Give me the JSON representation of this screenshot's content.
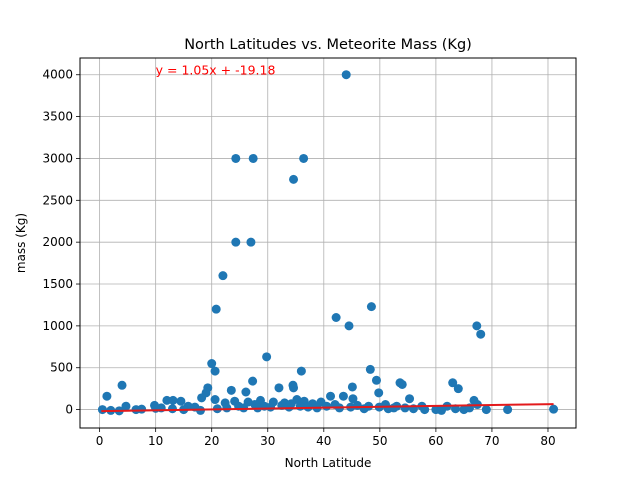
{
  "chart_data": {
    "type": "scatter",
    "title": "North Latitudes vs. Meteorite Mass (Kg)",
    "xlabel": "North Latitude",
    "ylabel": "mass (Kg)",
    "xlim": [
      -3.5,
      85
    ],
    "ylim": [
      -220,
      4200
    ],
    "xticks": [
      0,
      10,
      20,
      30,
      40,
      50,
      60,
      70,
      80
    ],
    "yticks": [
      0,
      500,
      1000,
      1500,
      2000,
      2500,
      3000,
      3500,
      4000
    ],
    "grid": true,
    "colors": {
      "points": "#1f77b4",
      "regression": "#e31a1c",
      "annotation": "#ff0000",
      "grid": "#b0b0b0"
    },
    "regression": {
      "slope": 1.05,
      "intercept": -19.18,
      "x_range": [
        0.3,
        81
      ]
    },
    "annotation": {
      "text": "y = 1.05x + -19.18",
      "x": 10,
      "y": 4000
    },
    "points": [
      {
        "x": 44,
        "y": 4000
      },
      {
        "x": 24.3,
        "y": 3000
      },
      {
        "x": 27.4,
        "y": 3000
      },
      {
        "x": 36.4,
        "y": 3000
      },
      {
        "x": 34.6,
        "y": 2750
      },
      {
        "x": 24.3,
        "y": 2000
      },
      {
        "x": 27,
        "y": 2000
      },
      {
        "x": 22,
        "y": 1600
      },
      {
        "x": 20.8,
        "y": 1200
      },
      {
        "x": 48.5,
        "y": 1230
      },
      {
        "x": 42.2,
        "y": 1100
      },
      {
        "x": 44.5,
        "y": 1000
      },
      {
        "x": 67.3,
        "y": 1000
      },
      {
        "x": 68,
        "y": 900
      },
      {
        "x": 29.8,
        "y": 630
      },
      {
        "x": 20,
        "y": 550
      },
      {
        "x": 48.3,
        "y": 480
      },
      {
        "x": 20.6,
        "y": 460
      },
      {
        "x": 36,
        "y": 460
      },
      {
        "x": 49.4,
        "y": 350
      },
      {
        "x": 27.3,
        "y": 340
      },
      {
        "x": 53.6,
        "y": 320
      },
      {
        "x": 54,
        "y": 300
      },
      {
        "x": 63,
        "y": 320
      },
      {
        "x": 64,
        "y": 250
      },
      {
        "x": 34.5,
        "y": 290
      },
      {
        "x": 34.6,
        "y": 260
      },
      {
        "x": 45.1,
        "y": 270
      },
      {
        "x": 4,
        "y": 290
      },
      {
        "x": 19.3,
        "y": 260
      },
      {
        "x": 32,
        "y": 260
      },
      {
        "x": 23.5,
        "y": 230
      },
      {
        "x": 26.1,
        "y": 210
      },
      {
        "x": 49.8,
        "y": 200
      },
      {
        "x": 1.3,
        "y": 160
      },
      {
        "x": 19,
        "y": 200
      },
      {
        "x": 43.5,
        "y": 160
      },
      {
        "x": 41.2,
        "y": 160
      },
      {
        "x": 18.2,
        "y": 140
      },
      {
        "x": 55.3,
        "y": 130
      },
      {
        "x": 45.2,
        "y": 130
      },
      {
        "x": 20.6,
        "y": 120
      },
      {
        "x": 28.7,
        "y": 110
      },
      {
        "x": 12,
        "y": 110
      },
      {
        "x": 13.1,
        "y": 110
      },
      {
        "x": 14.5,
        "y": 100
      },
      {
        "x": 24.1,
        "y": 100
      },
      {
        "x": 35.2,
        "y": 120
      },
      {
        "x": 36.5,
        "y": 100
      },
      {
        "x": 39.5,
        "y": 90
      },
      {
        "x": 26.5,
        "y": 90
      },
      {
        "x": 31,
        "y": 90
      },
      {
        "x": 22.4,
        "y": 80
      },
      {
        "x": 33,
        "y": 80
      },
      {
        "x": 38,
        "y": 70
      },
      {
        "x": 42,
        "y": 60
      },
      {
        "x": 46,
        "y": 50
      },
      {
        "x": 51,
        "y": 60
      },
      {
        "x": 53,
        "y": 40
      },
      {
        "x": 57.5,
        "y": 40
      },
      {
        "x": 66.8,
        "y": 110
      },
      {
        "x": 67.4,
        "y": 60
      },
      {
        "x": 62,
        "y": 40
      },
      {
        "x": 9.8,
        "y": 50
      },
      {
        "x": 4.7,
        "y": 40
      },
      {
        "x": 15.8,
        "y": 40
      },
      {
        "x": 17,
        "y": 30
      },
      {
        "x": 11,
        "y": 20
      },
      {
        "x": 0.5,
        "y": 0
      },
      {
        "x": 2,
        "y": -10
      },
      {
        "x": 3.5,
        "y": -15
      },
      {
        "x": 6.5,
        "y": 0
      },
      {
        "x": 7.5,
        "y": 5
      },
      {
        "x": 10,
        "y": 15
      },
      {
        "x": 13,
        "y": 10
      },
      {
        "x": 15,
        "y": 0
      },
      {
        "x": 18,
        "y": -10
      },
      {
        "x": 21,
        "y": 10
      },
      {
        "x": 22.7,
        "y": 20
      },
      {
        "x": 24.8,
        "y": 40
      },
      {
        "x": 25.7,
        "y": 20
      },
      {
        "x": 27.7,
        "y": 60
      },
      {
        "x": 28.2,
        "y": 20
      },
      {
        "x": 29.4,
        "y": 40
      },
      {
        "x": 30.5,
        "y": 30
      },
      {
        "x": 32.5,
        "y": 50
      },
      {
        "x": 33.8,
        "y": 30
      },
      {
        "x": 34.2,
        "y": 70
      },
      {
        "x": 35.8,
        "y": 40
      },
      {
        "x": 37.2,
        "y": 30
      },
      {
        "x": 38.8,
        "y": 20
      },
      {
        "x": 40.5,
        "y": 40
      },
      {
        "x": 42.8,
        "y": 20
      },
      {
        "x": 44.8,
        "y": 30
      },
      {
        "x": 47.2,
        "y": 10
      },
      {
        "x": 48,
        "y": 40
      },
      {
        "x": 49.9,
        "y": 30
      },
      {
        "x": 51.5,
        "y": 10
      },
      {
        "x": 52.5,
        "y": 20
      },
      {
        "x": 54.5,
        "y": 20
      },
      {
        "x": 56,
        "y": 10
      },
      {
        "x": 58,
        "y": 0
      },
      {
        "x": 60,
        "y": 0
      },
      {
        "x": 61,
        "y": -10
      },
      {
        "x": 63.5,
        "y": 10
      },
      {
        "x": 65,
        "y": 0
      },
      {
        "x": 66,
        "y": 20
      },
      {
        "x": 69,
        "y": 0
      },
      {
        "x": 72.8,
        "y": 0
      },
      {
        "x": 81,
        "y": 5
      }
    ]
  }
}
